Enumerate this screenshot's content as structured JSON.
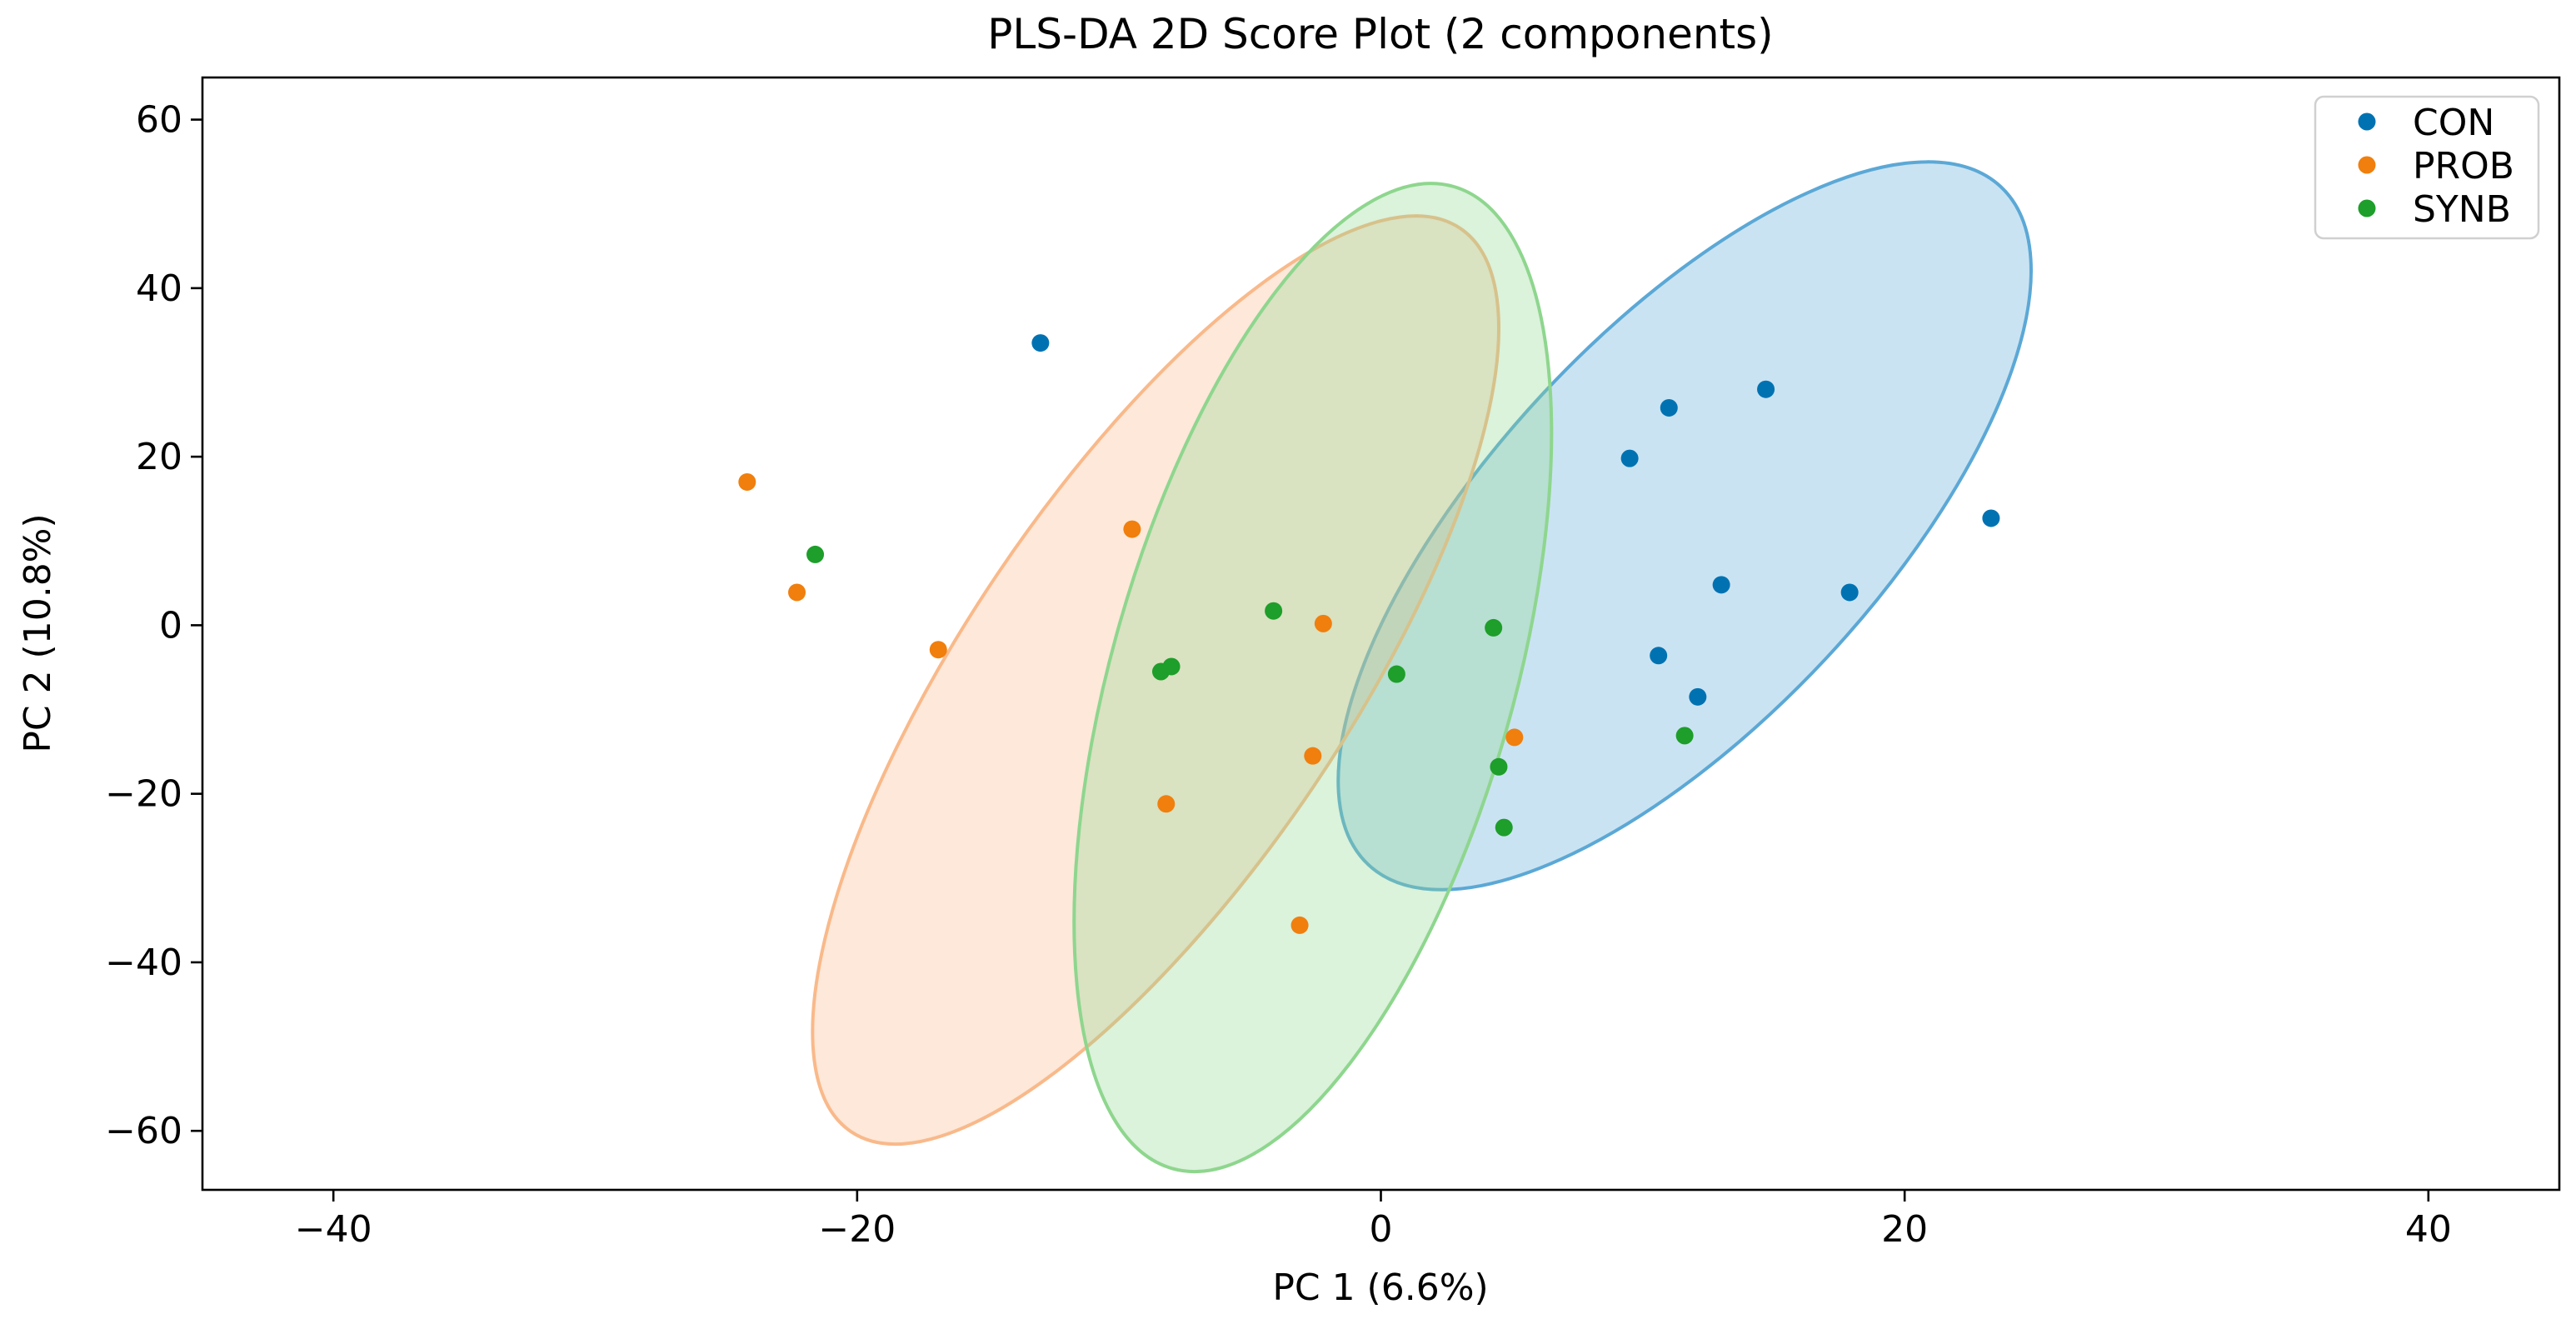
{
  "chart_data": {
    "type": "scatter",
    "title": "PLS-DA 2D Score Plot (2 components)",
    "xlabel": "PC 1 (6.6%)",
    "ylabel": "PC 2 (10.8%)",
    "xlim": [
      -45,
      45
    ],
    "ylim": [
      -67,
      65
    ],
    "xticks": [
      -40,
      -20,
      0,
      20,
      40
    ],
    "yticks": [
      -60,
      -40,
      -20,
      0,
      20,
      40,
      60
    ],
    "tick_labels": {
      "x": [
        "−40",
        "−20",
        "0",
        "20",
        "40"
      ],
      "y": [
        "−60",
        "−40",
        "−20",
        "0",
        "20",
        "40",
        "60"
      ]
    },
    "legend_position": "top-right",
    "series": [
      {
        "name": "CON",
        "color": "#0072B2",
        "ellipse_color": "#5BA8D6",
        "points": [
          {
            "x": -13.0,
            "y": 33.5
          },
          {
            "x": 9.5,
            "y": 19.8
          },
          {
            "x": 11.0,
            "y": 25.8
          },
          {
            "x": 14.7,
            "y": 28.0
          },
          {
            "x": 23.3,
            "y": 12.7
          },
          {
            "x": 13.0,
            "y": 4.8
          },
          {
            "x": 17.9,
            "y": 3.9
          },
          {
            "x": 10.6,
            "y": -3.6
          },
          {
            "x": 12.1,
            "y": -8.5
          }
        ],
        "ellipse": {
          "cx": 11.6,
          "cy": 11.8,
          "rx": 17.7,
          "ry": 23.0,
          "angle_deg": -47
        }
      },
      {
        "name": "PROB",
        "color": "#F07F0E",
        "ellipse_color": "#F9B98A",
        "points": [
          {
            "x": -24.2,
            "y": 17.0
          },
          {
            "x": -22.3,
            "y": 3.9
          },
          {
            "x": -16.9,
            "y": -2.9
          },
          {
            "x": -9.5,
            "y": 11.4
          },
          {
            "x": -2.2,
            "y": 0.2
          },
          {
            "x": -2.6,
            "y": -15.5
          },
          {
            "x": -8.2,
            "y": -21.2
          },
          {
            "x": -3.1,
            "y": -35.6
          },
          {
            "x": 5.1,
            "y": -13.3
          }
        ],
        "ellipse": {
          "cx": -8.6,
          "cy": -6.5,
          "rx": 20.8,
          "ry": 22.6,
          "angle_deg": -56
        }
      },
      {
        "name": "SYNB",
        "color": "#1E9E2A",
        "ellipse_color": "#8ED68E",
        "points": [
          {
            "x": -21.6,
            "y": 8.4
          },
          {
            "x": -8.4,
            "y": -5.5
          },
          {
            "x": -8.0,
            "y": -4.9
          },
          {
            "x": -4.1,
            "y": 1.7
          },
          {
            "x": 0.6,
            "y": -5.8
          },
          {
            "x": 4.3,
            "y": -0.3
          },
          {
            "x": 4.5,
            "y": -16.8
          },
          {
            "x": 4.7,
            "y": -24.0
          },
          {
            "x": 11.6,
            "y": -13.1
          }
        ],
        "ellipse": {
          "cx": -2.6,
          "cy": -6.2,
          "rx": 19.5,
          "ry": 23.8,
          "angle_deg": -74
        }
      }
    ]
  }
}
